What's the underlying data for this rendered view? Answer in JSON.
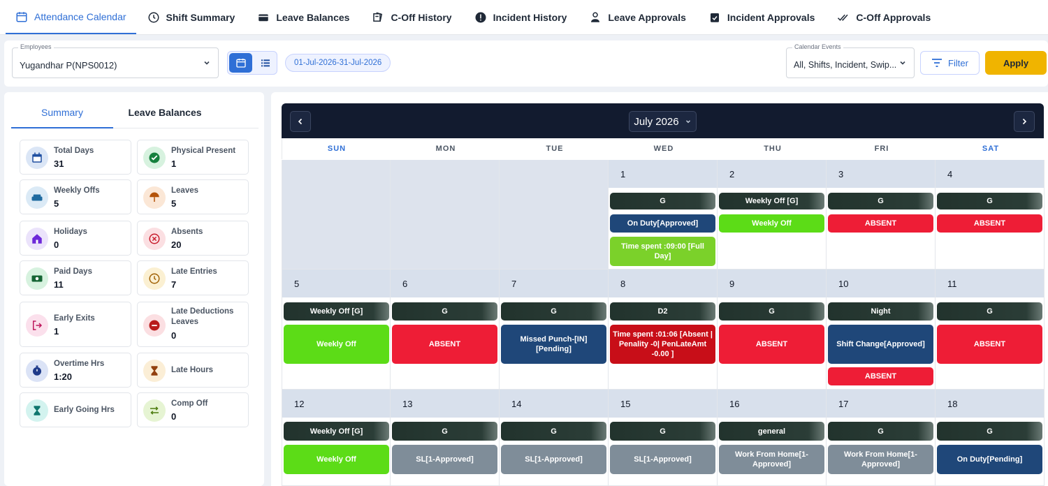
{
  "tabs": [
    {
      "label": "Attendance Calendar",
      "icon": "calendar-icon"
    },
    {
      "label": "Shift Summary",
      "icon": "clock-icon"
    },
    {
      "label": "Leave Balances",
      "icon": "wallet-icon"
    },
    {
      "label": "C-Off History",
      "icon": "history-icon"
    },
    {
      "label": "Incident History",
      "icon": "alert-icon"
    },
    {
      "label": "Leave Approvals",
      "icon": "user-check-icon"
    },
    {
      "label": "Incident Approvals",
      "icon": "clipboard-check-icon"
    },
    {
      "label": "C-Off Approvals",
      "icon": "double-check-icon"
    }
  ],
  "filters": {
    "employees_label": "Employees",
    "employees_value": "Yugandhar P(NPS0012)",
    "date_range": "01-Jul-2026-31-Jul-2026",
    "events_label": "Calendar Events",
    "events_value": "All, Shifts, Incident, Swip...",
    "filter_label": "Filter",
    "apply_label": "Apply"
  },
  "summary": {
    "tab_summary": "Summary",
    "tab_leave_balances": "Leave Balances",
    "cards": [
      {
        "label": "Total Days",
        "value": "31",
        "icon": "calendar-icon",
        "color": "#1f4fa0",
        "bg": "#dbe6f6"
      },
      {
        "label": "Physical Present",
        "value": "1",
        "icon": "check-circle-icon",
        "color": "#14803c",
        "bg": "#d7f2df"
      },
      {
        "label": "Weekly Offs",
        "value": "5",
        "icon": "sofa-icon",
        "color": "#1f6aa0",
        "bg": "#dbeaf6"
      },
      {
        "label": "Leaves",
        "value": "5",
        "icon": "umbrella-icon",
        "color": "#b45309",
        "bg": "#fbe7d6"
      },
      {
        "label": "Holidays",
        "value": "0",
        "icon": "house-icon",
        "color": "#6d28d9",
        "bg": "#ebe3fb"
      },
      {
        "label": "Absents",
        "value": "20",
        "icon": "x-circle-icon",
        "color": "#c81e2e",
        "bg": "#fbdfe2"
      },
      {
        "label": "Paid Days",
        "value": "11",
        "icon": "money-icon",
        "color": "#166534",
        "bg": "#d7f2df"
      },
      {
        "label": "Late Entries",
        "value": "7",
        "icon": "clock-icon",
        "color": "#a16207",
        "bg": "#fbf0d2"
      },
      {
        "label": "Early Exits",
        "value": "1",
        "icon": "exit-icon",
        "color": "#be185d",
        "bg": "#fbe0ec"
      },
      {
        "label": "Late Deductions Leaves",
        "value": "0",
        "icon": "minus-circle-icon",
        "color": "#b91c1c",
        "bg": "#fbdfe2"
      },
      {
        "label": "Overtime Hrs",
        "value": "1:20",
        "icon": "stopwatch-icon",
        "color": "#1e3a8a",
        "bg": "#dbe3f6"
      },
      {
        "label": "Late Hours",
        "value": "",
        "icon": "hourglass-icon",
        "color": "#92400e",
        "bg": "#fbeed6"
      },
      {
        "label": "Early Going Hrs",
        "value": "",
        "icon": "hourglass-icon",
        "color": "#0f766e",
        "bg": "#d3f3ef"
      },
      {
        "label": "Comp Off",
        "value": "0",
        "icon": "swap-icon",
        "color": "#4d7c0f",
        "bg": "#e6f4d3"
      }
    ]
  },
  "calendar": {
    "month_label": "July 2026",
    "weekdays": [
      "SUN",
      "MON",
      "TUE",
      "WED",
      "THU",
      "FRI",
      "SAT"
    ],
    "weeks": [
      [
        null,
        null,
        null,
        {
          "day": "1",
          "events": [
            {
              "text": "G",
              "kind": "shift"
            },
            {
              "text": "On Duty[Approved]",
              "kind": "blue"
            },
            {
              "text": "Time spent :09:00 [Full Day]",
              "kind": "lgreen"
            }
          ]
        },
        {
          "day": "2",
          "events": [
            {
              "text": "Weekly Off [G]",
              "kind": "shift"
            },
            {
              "text": "Weekly Off",
              "kind": "green"
            }
          ]
        },
        {
          "day": "3",
          "events": [
            {
              "text": "G",
              "kind": "shift"
            },
            {
              "text": "ABSENT",
              "kind": "red"
            }
          ]
        },
        {
          "day": "4",
          "events": [
            {
              "text": "G",
              "kind": "shift"
            },
            {
              "text": "ABSENT",
              "kind": "red"
            }
          ]
        }
      ],
      [
        {
          "day": "5",
          "events": [
            {
              "text": "Weekly Off [G]",
              "kind": "shift"
            },
            {
              "text": "Weekly Off",
              "kind": "green"
            }
          ]
        },
        {
          "day": "6",
          "events": [
            {
              "text": "G",
              "kind": "shift"
            },
            {
              "text": "ABSENT",
              "kind": "red"
            }
          ]
        },
        {
          "day": "7",
          "events": [
            {
              "text": "G",
              "kind": "shift"
            },
            {
              "text": "Missed Punch-[IN] [Pending]",
              "kind": "blue"
            }
          ]
        },
        {
          "day": "8",
          "events": [
            {
              "text": "D2",
              "kind": "shift"
            },
            {
              "text": "Time spent :01:06 [Absent | Penality -0| PenLateAmt -0.00 ]",
              "kind": "dred"
            }
          ]
        },
        {
          "day": "9",
          "events": [
            {
              "text": "G",
              "kind": "shift"
            },
            {
              "text": "ABSENT",
              "kind": "red"
            }
          ]
        },
        {
          "day": "10",
          "events": [
            {
              "text": "Night",
              "kind": "shift"
            },
            {
              "text": "Shift Change[Approved]",
              "kind": "blue"
            },
            {
              "text": "ABSENT",
              "kind": "red"
            }
          ]
        },
        {
          "day": "11",
          "events": [
            {
              "text": "G",
              "kind": "shift"
            },
            {
              "text": "ABSENT",
              "kind": "red"
            }
          ]
        }
      ],
      [
        {
          "day": "12",
          "events": [
            {
              "text": "Weekly Off [G]",
              "kind": "shift"
            },
            {
              "text": "Weekly Off",
              "kind": "green"
            }
          ]
        },
        {
          "day": "13",
          "events": [
            {
              "text": "G",
              "kind": "shift"
            },
            {
              "text": "SL[1-Approved]",
              "kind": "grey"
            }
          ]
        },
        {
          "day": "14",
          "events": [
            {
              "text": "G",
              "kind": "shift"
            },
            {
              "text": "SL[1-Approved]",
              "kind": "grey"
            }
          ]
        },
        {
          "day": "15",
          "events": [
            {
              "text": "G",
              "kind": "shift"
            },
            {
              "text": "SL[1-Approved]",
              "kind": "grey"
            }
          ]
        },
        {
          "day": "16",
          "events": [
            {
              "text": "general",
              "kind": "shift"
            },
            {
              "text": "Work From Home[1-Approved]",
              "kind": "grey"
            }
          ]
        },
        {
          "day": "17",
          "events": [
            {
              "text": "G",
              "kind": "shift"
            },
            {
              "text": "Work From Home[1-Approved]",
              "kind": "grey"
            }
          ]
        },
        {
          "day": "18",
          "events": [
            {
              "text": "G",
              "kind": "shift"
            },
            {
              "text": "On Duty[Pending]",
              "kind": "blue"
            }
          ]
        }
      ]
    ]
  }
}
